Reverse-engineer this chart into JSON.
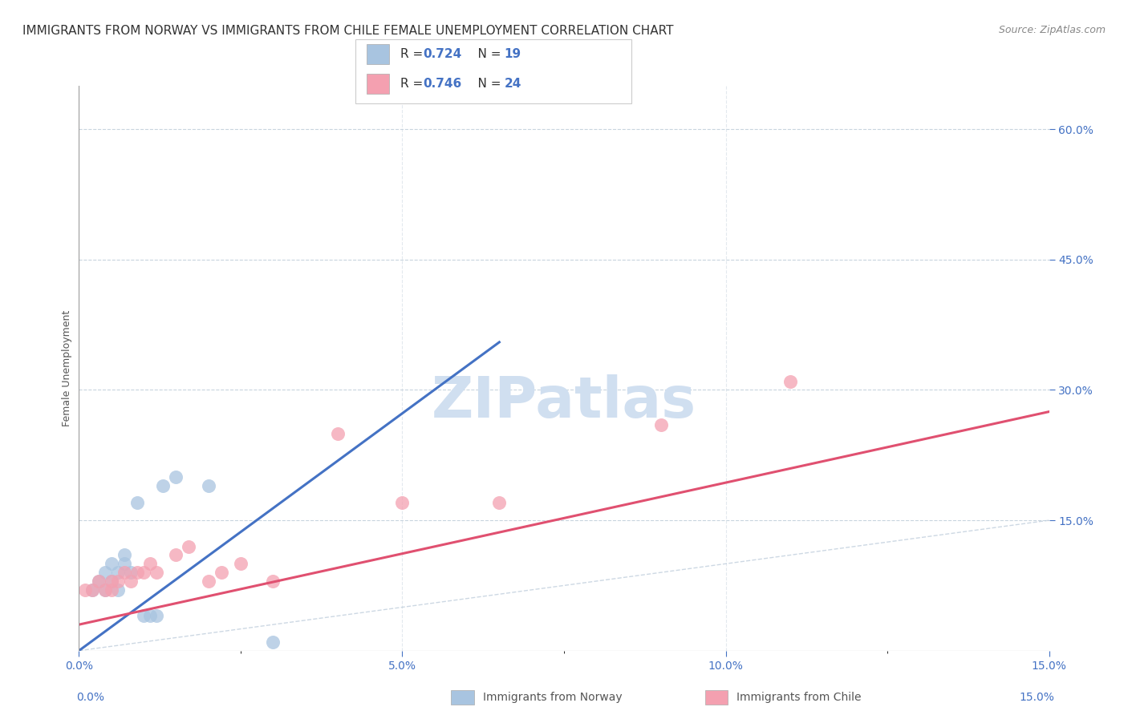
{
  "title": "IMMIGRANTS FROM NORWAY VS IMMIGRANTS FROM CHILE FEMALE UNEMPLOYMENT CORRELATION CHART",
  "source": "Source: ZipAtlas.com",
  "ylabel": "Female Unemployment",
  "xlim": [
    0.0,
    0.15
  ],
  "ylim": [
    0.0,
    0.65
  ],
  "norway_R": 0.724,
  "norway_N": 19,
  "chile_R": 0.746,
  "chile_N": 24,
  "norway_color": "#a8c4e0",
  "chile_color": "#f4a0b0",
  "norway_line_color": "#4472c4",
  "chile_line_color": "#e05070",
  "diag_line_color": "#b8c8d8",
  "background_color": "#ffffff",
  "norway_x": [
    0.002,
    0.003,
    0.004,
    0.004,
    0.005,
    0.005,
    0.006,
    0.006,
    0.007,
    0.007,
    0.008,
    0.009,
    0.01,
    0.011,
    0.012,
    0.013,
    0.015,
    0.02,
    0.03
  ],
  "norway_y": [
    0.07,
    0.08,
    0.07,
    0.09,
    0.1,
    0.08,
    0.07,
    0.09,
    0.1,
    0.11,
    0.09,
    0.17,
    0.04,
    0.04,
    0.04,
    0.19,
    0.2,
    0.19,
    0.01
  ],
  "chile_x": [
    0.001,
    0.002,
    0.003,
    0.004,
    0.005,
    0.005,
    0.006,
    0.007,
    0.008,
    0.009,
    0.01,
    0.011,
    0.012,
    0.015,
    0.017,
    0.02,
    0.022,
    0.025,
    0.03,
    0.04,
    0.05,
    0.065,
    0.09,
    0.11
  ],
  "chile_y": [
    0.07,
    0.07,
    0.08,
    0.07,
    0.08,
    0.07,
    0.08,
    0.09,
    0.08,
    0.09,
    0.09,
    0.1,
    0.09,
    0.11,
    0.12,
    0.08,
    0.09,
    0.1,
    0.08,
    0.25,
    0.17,
    0.17,
    0.26,
    0.31
  ],
  "norway_line_x": [
    0.0,
    0.065
  ],
  "norway_line_y": [
    0.0,
    0.355
  ],
  "chile_line_x": [
    0.0,
    0.15
  ],
  "chile_line_y": [
    0.03,
    0.275
  ],
  "title_fontsize": 11,
  "axis_label_fontsize": 9,
  "tick_fontsize": 10,
  "watermark_text": "ZIPatlas",
  "watermark_color": "#d0dff0",
  "watermark_fontsize": 52
}
